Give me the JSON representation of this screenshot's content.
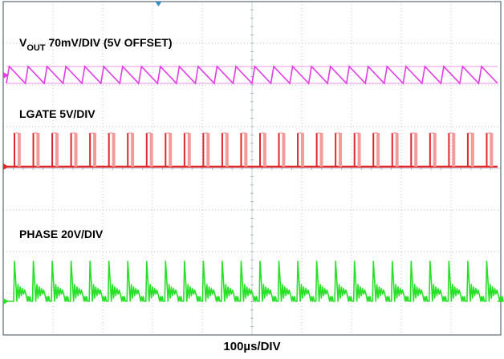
{
  "chart_data": {
    "type": "line",
    "grid": true,
    "grid_divisions": {
      "x": 10,
      "y": 8
    },
    "xlabel": "100µs/DIV",
    "series": [
      {
        "label_main": "V",
        "label_sub": "OUT",
        "label_rest": " 70mV/DIV (5V OFFSET)",
        "color": "#e23be6",
        "shape": "sawtooth",
        "cycles": 26
      },
      {
        "label_main": "LGATE 5V/DIV",
        "color": "#e0262a",
        "shape": "pulse",
        "cycles": 26
      },
      {
        "label_main": "PHASE 20V/DIV",
        "color": "#27e027",
        "shape": "spike",
        "cycles": 26
      }
    ]
  }
}
